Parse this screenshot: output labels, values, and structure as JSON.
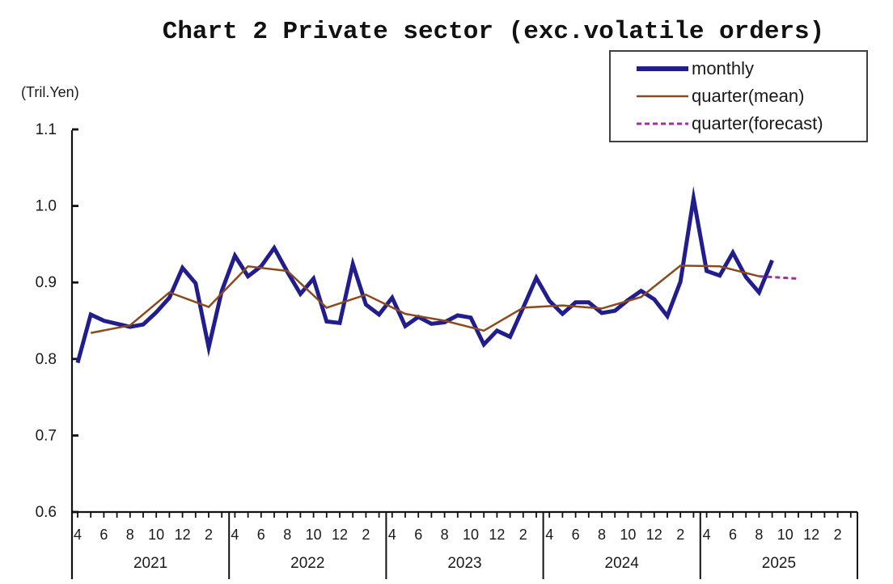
{
  "page": {
    "background": "#ffffff"
  },
  "chart_data": {
    "type": "line",
    "title": "Chart 2 Private sector (exc.volatile orders)",
    "unit_label": "(Tril.Yen)",
    "ylabel": "",
    "xlabel": "",
    "ylim": [
      0.6,
      1.1
    ],
    "yticks": [
      1.1,
      1.0,
      0.9,
      0.8,
      0.7,
      0.6
    ],
    "grid": false,
    "legend_position": "top-right",
    "x_axis": {
      "start_month": "April 2021",
      "months_per_year": 12,
      "total_months": 60,
      "years": [
        "2021",
        "2022",
        "2023",
        "2024",
        "2025"
      ],
      "month_labels_per_year": [
        "4",
        "6",
        "8",
        "10",
        "12",
        "2"
      ],
      "month_label_offsets": [
        0,
        2,
        4,
        6,
        8,
        10
      ]
    },
    "series": [
      {
        "name": "monthly",
        "color": "#221d8c",
        "line_style": "solid",
        "line_width": 5,
        "start_index": 0,
        "step": 1,
        "values": [
          0.795,
          0.858,
          0.85,
          0.846,
          0.842,
          0.845,
          0.861,
          0.88,
          0.919,
          0.899,
          0.815,
          0.889,
          0.935,
          0.908,
          0.921,
          0.945,
          0.914,
          0.885,
          0.905,
          0.849,
          0.847,
          0.924,
          0.871,
          0.858,
          0.88,
          0.843,
          0.855,
          0.846,
          0.848,
          0.857,
          0.854,
          0.819,
          0.837,
          0.829,
          0.867,
          0.906,
          0.876,
          0.859,
          0.874,
          0.874,
          0.86,
          0.863,
          0.877,
          0.889,
          0.878,
          0.856,
          0.901,
          1.01,
          0.915,
          0.909,
          0.939,
          0.907,
          0.887,
          0.929
        ]
      },
      {
        "name": "quarter(mean)",
        "color": "#8a4a1e",
        "line_style": "solid",
        "line_width": 2.5,
        "start_index": 1,
        "step": 3,
        "values": [
          0.834,
          0.844,
          0.887,
          0.868,
          0.921,
          0.915,
          0.867,
          0.884,
          0.859,
          0.85,
          0.837,
          0.867,
          0.87,
          0.866,
          0.881,
          0.922,
          0.921,
          0.908
        ]
      },
      {
        "name": "quarter(forecast)",
        "color": "#9c3398",
        "line_style": "dashed",
        "line_width": 3,
        "start_index": 52,
        "step": 3,
        "values": [
          0.908,
          0.905
        ]
      }
    ]
  }
}
